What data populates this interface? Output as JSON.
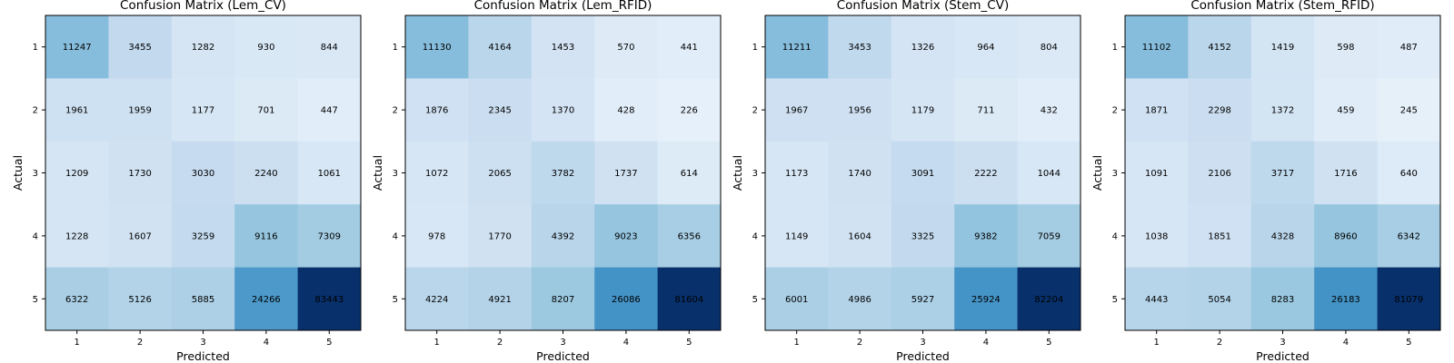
{
  "chart_data": [
    {
      "type": "heatmap",
      "title": "Confusion Matrix (Lem_CV)",
      "xlabel": "Predicted",
      "ylabel": "Actual",
      "x_categories": [
        "1",
        "2",
        "3",
        "4",
        "5"
      ],
      "y_categories": [
        "1",
        "2",
        "3",
        "4",
        "5"
      ],
      "colormap": "Blues",
      "values": [
        [
          11247,
          3455,
          1282,
          930,
          844
        ],
        [
          1961,
          1959,
          1177,
          701,
          447
        ],
        [
          1209,
          1730,
          3030,
          2240,
          1061
        ],
        [
          1228,
          1607,
          3259,
          9116,
          7309
        ],
        [
          6322,
          5126,
          5885,
          24266,
          83443
        ]
      ]
    },
    {
      "type": "heatmap",
      "title": "Confusion Matrix (Lem_RFID)",
      "xlabel": "Predicted",
      "ylabel": "Actual",
      "x_categories": [
        "1",
        "2",
        "3",
        "4",
        "5"
      ],
      "y_categories": [
        "1",
        "2",
        "3",
        "4",
        "5"
      ],
      "colormap": "Blues",
      "values": [
        [
          11130,
          4164,
          1453,
          570,
          441
        ],
        [
          1876,
          2345,
          1370,
          428,
          226
        ],
        [
          1072,
          2065,
          3782,
          1737,
          614
        ],
        [
          978,
          1770,
          4392,
          9023,
          6356
        ],
        [
          4224,
          4921,
          8207,
          26086,
          81604
        ]
      ]
    },
    {
      "type": "heatmap",
      "title": "Confusion Matrix (Stem_CV)",
      "xlabel": "Predicted",
      "ylabel": "Actual",
      "x_categories": [
        "1",
        "2",
        "3",
        "4",
        "5"
      ],
      "y_categories": [
        "1",
        "2",
        "3",
        "4",
        "5"
      ],
      "colormap": "Blues",
      "values": [
        [
          11211,
          3453,
          1326,
          964,
          804
        ],
        [
          1967,
          1956,
          1179,
          711,
          432
        ],
        [
          1173,
          1740,
          3091,
          2222,
          1044
        ],
        [
          1149,
          1604,
          3325,
          9382,
          7059
        ],
        [
          6001,
          4986,
          5927,
          25924,
          82204
        ]
      ]
    },
    {
      "type": "heatmap",
      "title": "Confusion Matrix (Stem_RFID)",
      "xlabel": "Predicted",
      "ylabel": "Actual",
      "x_categories": [
        "1",
        "2",
        "3",
        "4",
        "5"
      ],
      "y_categories": [
        "1",
        "2",
        "3",
        "4",
        "5"
      ],
      "colormap": "Blues",
      "values": [
        [
          11102,
          4152,
          1419,
          598,
          487
        ],
        [
          1871,
          2298,
          1372,
          459,
          245
        ],
        [
          1091,
          2106,
          3717,
          1716,
          640
        ],
        [
          1038,
          1851,
          4328,
          8960,
          6342
        ],
        [
          4443,
          5054,
          8283,
          26183,
          81079
        ]
      ]
    }
  ]
}
